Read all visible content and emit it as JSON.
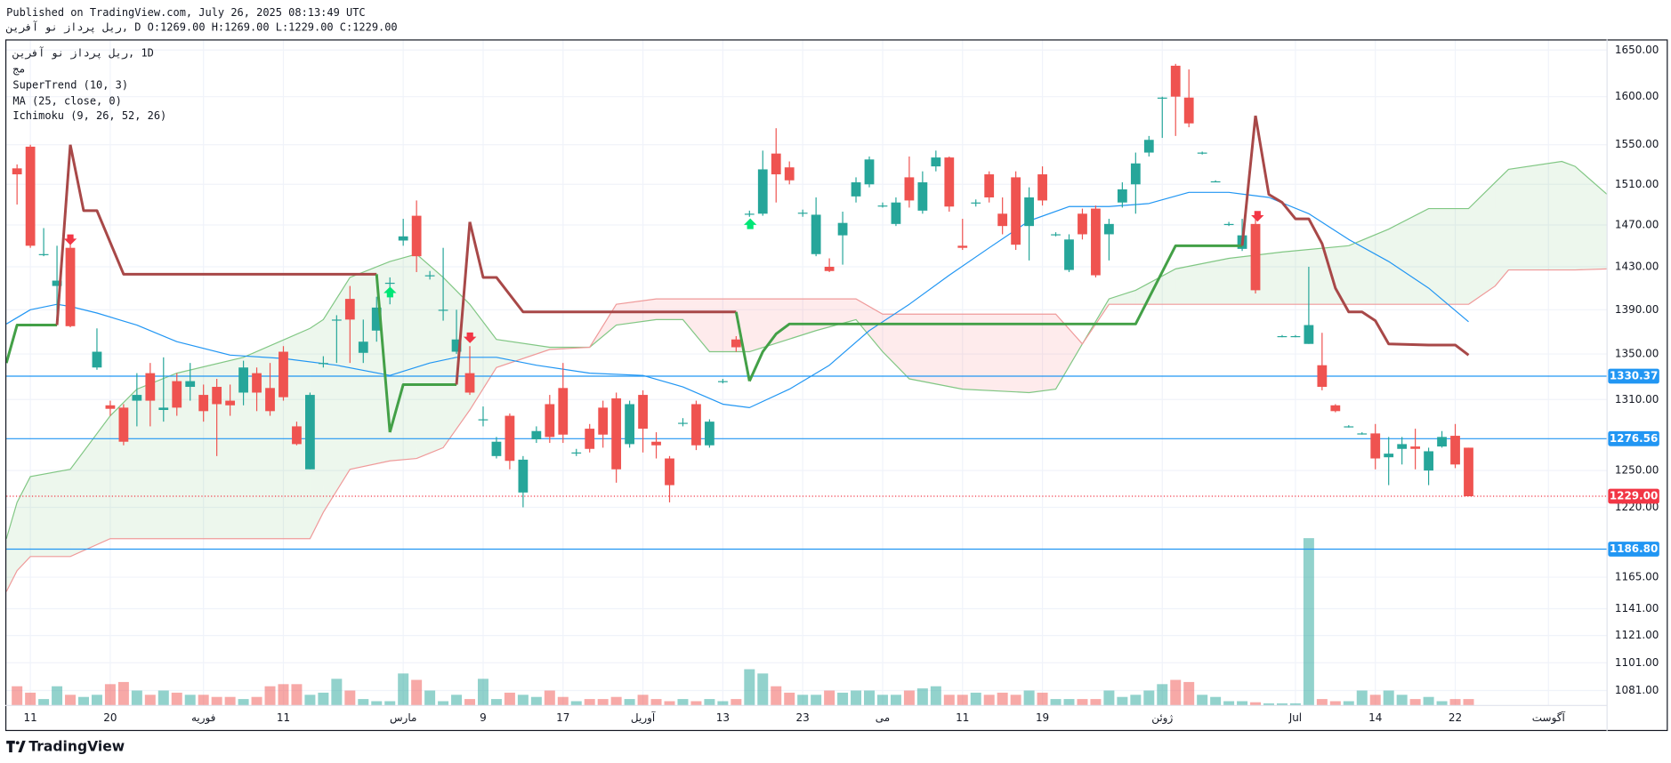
{
  "header": {
    "published": "Published on TradingView.com, July 26, 2025 08:13:49 UTC",
    "symbol": "ریل پرداز نو آفرین",
    "quote": ", D O:1269.00 H:1269.00 L:1229.00 C:1229.00"
  },
  "legend": {
    "symbol": "ریل پرداز نو آفرین",
    "interval": ", 1D",
    "exchange": "مج",
    "indicators": [
      "SuperTrend (10, 3)",
      "MA (25, close, 0)",
      "Ichimoku (9, 26, 52, 26)"
    ]
  },
  "footer": {
    "brand": "TradingView"
  },
  "chart_data": {
    "type": "candlestick",
    "log": true,
    "grid": true,
    "up_color": "#26a69a",
    "down_color": "#ef5350",
    "volume_up_color": "rgba(38,166,154,0.5)",
    "volume_down_color": "rgba(239,83,80,0.5)",
    "xlim": [
      -0.8,
      119.4
    ],
    "xticks": [
      {
        "value": 1,
        "label": "11"
      },
      {
        "value": 7,
        "label": "20"
      },
      {
        "value": 14,
        "label": "فوریه"
      },
      {
        "value": 20,
        "label": "11"
      },
      {
        "value": 29,
        "label": "مارس"
      },
      {
        "value": 35,
        "label": "9"
      },
      {
        "value": 41,
        "label": "17"
      },
      {
        "value": 47,
        "label": "آوریل"
      },
      {
        "value": 53,
        "label": "13"
      },
      {
        "value": 59,
        "label": "23"
      },
      {
        "value": 65,
        "label": "می"
      },
      {
        "value": 71,
        "label": "11"
      },
      {
        "value": 77,
        "label": "19"
      },
      {
        "value": 86,
        "label": "ژوئن"
      },
      {
        "value": 96,
        "label": "Jul"
      },
      {
        "value": 102,
        "label": "14"
      },
      {
        "value": 108,
        "label": "22"
      },
      {
        "value": 115,
        "label": "آگوست"
      }
    ],
    "ylim": [
      1070.4,
      1661.6
    ],
    "yticks": [
      {
        "value": 1650,
        "label": "1650.00"
      },
      {
        "value": 1600,
        "label": "1600.00"
      },
      {
        "value": 1550,
        "label": "1550.00"
      },
      {
        "value": 1510,
        "label": "1510.00"
      },
      {
        "value": 1470,
        "label": "1470.00"
      },
      {
        "value": 1430,
        "label": "1430.00"
      },
      {
        "value": 1390,
        "label": "1390.00"
      },
      {
        "value": 1350,
        "label": "1350.00"
      },
      {
        "value": 1310,
        "label": "1310.00"
      },
      {
        "value": 1250,
        "label": "1250.00"
      },
      {
        "value": 1220,
        "label": "1220.00"
      },
      {
        "value": 1165,
        "label": "1165.00"
      },
      {
        "value": 1141,
        "label": "1141.00"
      },
      {
        "value": 1121,
        "label": "1121.00"
      },
      {
        "value": 1101,
        "label": "1101.00"
      },
      {
        "value": 1081,
        "label": "1081.00"
      }
    ],
    "candles": [
      [
        1526,
        1530,
        1490,
        1520
      ],
      [
        1548,
        1550,
        1448,
        1450
      ],
      [
        1442,
        1467,
        1440,
        1442
      ],
      [
        1412,
        1450,
        1380,
        1417
      ],
      [
        1448,
        1456,
        1374,
        1375
      ],
      null,
      [
        1338,
        1373,
        1336,
        1352
      ],
      [
        1305,
        1309,
        1296,
        1302
      ],
      [
        1303,
        1306,
        1271,
        1274
      ],
      [
        1309,
        1333,
        1287,
        1314
      ],
      [
        1333,
        1342,
        1287,
        1309
      ],
      [
        1301,
        1347,
        1291,
        1303
      ],
      [
        1326,
        1333,
        1296,
        1303
      ],
      [
        1321,
        1342,
        1309,
        1326
      ],
      [
        1314,
        1323,
        1291,
        1300
      ],
      [
        1321,
        1328,
        1262,
        1306
      ],
      [
        1309,
        1323,
        1296,
        1305
      ],
      [
        1316,
        1344,
        1305,
        1338
      ],
      [
        1333,
        1338,
        1300,
        1316
      ],
      [
        1320,
        1342,
        1296,
        1300
      ],
      [
        1352,
        1357,
        1309,
        1312
      ],
      [
        1287,
        1291,
        1271,
        1272
      ],
      [
        1251,
        1316,
        1251,
        1314
      ],
      [
        1342,
        1348,
        1338,
        1342
      ],
      [
        1381,
        1385,
        1342,
        1381
      ],
      [
        1400,
        1412,
        1342,
        1381
      ],
      [
        1351,
        1381,
        1342,
        1361
      ],
      [
        1371,
        1402,
        1361,
        1392
      ],
      [
        1415,
        1420,
        1395,
        1415
      ],
      [
        1455,
        1476,
        1450,
        1459
      ],
      [
        1479,
        1494,
        1425,
        1440
      ],
      [
        1422,
        1426,
        1418,
        1422
      ],
      [
        1390,
        1448,
        1380,
        1390
      ],
      [
        1352,
        1390,
        1350,
        1363
      ],
      [
        1333,
        1357,
        1314,
        1316
      ],
      [
        1293,
        1304,
        1287,
        1293
      ],
      [
        1262,
        1278,
        1260,
        1274
      ],
      [
        1296,
        1298,
        1251,
        1258
      ],
      [
        1232,
        1262,
        1220,
        1259
      ],
      [
        1276,
        1287,
        1273,
        1283
      ],
      [
        1306,
        1314,
        1273,
        1278
      ],
      [
        1320,
        1342,
        1273,
        1280
      ],
      [
        1265,
        1268,
        1262,
        1265
      ],
      [
        1285,
        1289,
        1265,
        1268
      ],
      [
        1303,
        1309,
        1269,
        1280
      ],
      [
        1311,
        1316,
        1240,
        1251
      ],
      [
        1272,
        1309,
        1269,
        1306
      ],
      [
        1314,
        1318,
        1265,
        1285
      ],
      [
        1274,
        1282,
        1260,
        1271
      ],
      [
        1260,
        1262,
        1224,
        1238
      ],
      [
        1290,
        1294,
        1287,
        1290
      ],
      [
        1306,
        1309,
        1267,
        1271
      ],
      [
        1271,
        1293,
        1269,
        1291
      ],
      [
        1326,
        1328,
        1324,
        1326
      ],
      [
        1363,
        1366,
        1352,
        1356
      ],
      [
        1481,
        1484,
        1478,
        1481
      ],
      [
        1481,
        1544,
        1479,
        1525
      ],
      [
        1541,
        1567,
        1492,
        1520
      ],
      [
        1527,
        1533,
        1510,
        1514
      ],
      [
        1482,
        1485,
        1478,
        1482
      ],
      [
        1442,
        1497,
        1440,
        1480
      ],
      [
        1430,
        1438,
        1425,
        1426
      ],
      [
        1460,
        1483,
        1432,
        1472
      ],
      [
        1498,
        1517,
        1492,
        1512
      ],
      [
        1510,
        1538,
        1507,
        1535
      ],
      [
        1489,
        1492,
        1487,
        1489
      ],
      [
        1471,
        1497,
        1469,
        1492
      ],
      [
        1517,
        1538,
        1487,
        1494
      ],
      [
        1484,
        1523,
        1481,
        1512
      ],
      [
        1528,
        1544,
        1523,
        1537
      ],
      [
        1537,
        1538,
        1483,
        1488
      ],
      [
        1450,
        1476,
        1446,
        1448
      ],
      [
        1492,
        1495,
        1488,
        1492
      ],
      [
        1520,
        1523,
        1492,
        1497
      ],
      [
        1481,
        1497,
        1461,
        1469
      ],
      [
        1517,
        1523,
        1446,
        1451
      ],
      [
        1469,
        1507,
        1436,
        1497
      ],
      [
        1520,
        1528,
        1489,
        1494
      ],
      [
        1461,
        1463,
        1459,
        1461
      ],
      [
        1427,
        1461,
        1425,
        1456
      ],
      [
        1481,
        1486,
        1456,
        1461
      ],
      [
        1486,
        1489,
        1420,
        1422
      ],
      [
        1461,
        1476,
        1436,
        1471
      ],
      [
        1492,
        1512,
        1487,
        1505
      ],
      [
        1510,
        1542,
        1481,
        1531
      ],
      [
        1542,
        1559,
        1538,
        1555
      ],
      [
        1599,
        1600,
        1557,
        1599
      ],
      [
        1633,
        1635,
        1559,
        1600
      ],
      [
        1599,
        1629,
        1568,
        1572
      ],
      [
        1542,
        1543,
        1540,
        1542
      ],
      [
        1513,
        1514,
        1512,
        1513
      ],
      [
        1471,
        1473,
        1469,
        1471
      ],
      [
        1447,
        1476,
        1445,
        1460
      ],
      [
        1471,
        1476,
        1405,
        1408
      ],
      null,
      [
        1366,
        1367,
        1365,
        1366
      ],
      [
        1366,
        1367,
        1365,
        1366
      ],
      [
        1359,
        1430,
        1359,
        1376
      ],
      [
        1340,
        1369,
        1318,
        1321
      ],
      [
        1305,
        1306,
        1299,
        1300
      ],
      [
        1287,
        1288,
        1286,
        1287
      ],
      [
        1281,
        1282,
        1280,
        1281
      ],
      [
        1281,
        1289,
        1251,
        1260
      ],
      [
        1261,
        1278,
        1238,
        1264
      ],
      [
        1268,
        1278,
        1255,
        1272
      ],
      [
        1270,
        1285,
        1251,
        1268
      ],
      [
        1250,
        1269,
        1238,
        1266
      ],
      [
        1270,
        1283,
        1269,
        1278
      ],
      [
        1279,
        1289,
        1252,
        1255
      ],
      [
        1269,
        1269,
        1229,
        1229
      ]
    ],
    "volume": [
      18,
      12,
      6,
      18,
      10,
      8,
      10,
      20,
      22,
      14,
      10,
      14,
      12,
      10,
      10,
      8,
      8,
      6,
      8,
      18,
      20,
      20,
      10,
      12,
      25,
      14,
      6,
      4,
      4,
      30,
      24,
      14,
      4,
      10,
      6,
      25,
      6,
      12,
      10,
      8,
      14,
      8,
      4,
      6,
      6,
      8,
      6,
      10,
      6,
      4,
      6,
      4,
      6,
      4,
      6,
      34,
      30,
      18,
      12,
      10,
      10,
      14,
      12,
      14,
      14,
      10,
      10,
      14,
      16,
      18,
      10,
      10,
      12,
      10,
      12,
      10,
      14,
      12,
      6,
      6,
      6,
      6,
      14,
      8,
      10,
      14,
      20,
      24,
      22,
      10,
      8,
      4,
      4,
      3,
      2,
      2,
      2,
      157,
      6,
      4,
      4,
      14,
      10,
      14,
      10,
      6,
      8,
      4,
      6,
      6
    ],
    "ma": {
      "color": "#2196f3",
      "x": [
        -0.8,
        1,
        3,
        4,
        6,
        9,
        12,
        16,
        20,
        24,
        28,
        31,
        33,
        36,
        39,
        43,
        47,
        50,
        53,
        55,
        58,
        61,
        64,
        67,
        70,
        73,
        76,
        79,
        82,
        85,
        88,
        91,
        94,
        97,
        100,
        103,
        106,
        109
      ],
      "values": [
        1377,
        1390,
        1395,
        1393,
        1387,
        1376,
        1361,
        1349,
        1346,
        1340,
        1331,
        1342,
        1347,
        1347,
        1340,
        1333,
        1331,
        1321,
        1306,
        1303,
        1319,
        1340,
        1371,
        1395,
        1422,
        1448,
        1474,
        1488,
        1488,
        1491,
        1502,
        1502,
        1497,
        1481,
        1456,
        1435,
        1410,
        1379
      ]
    },
    "supertrend": [
      {
        "color": "#43a047",
        "x": [
          -0.8,
          0,
          3
        ],
        "values": [
          1342,
          1376,
          1376
        ]
      },
      {
        "color": "#a84848",
        "x": [
          4,
          5,
          6,
          8,
          27
        ],
        "values": [
          1550,
          1484,
          1484,
          1423,
          1423
        ]
      },
      {
        "color": "#43a047",
        "x": [
          28,
          29,
          33
        ],
        "values": [
          1282,
          1323,
          1323
        ]
      },
      {
        "color": "#a84848",
        "x": [
          34,
          35,
          36,
          38,
          54
        ],
        "values": [
          1473,
          1420,
          1420,
          1388,
          1388
        ]
      },
      {
        "color": "#43a047",
        "x": [
          55,
          56,
          57,
          58,
          84,
          87,
          92
        ],
        "values": [
          1326,
          1352,
          1368,
          1377,
          1377,
          1450,
          1450
        ]
      },
      {
        "color": "#a84848",
        "x": [
          93,
          94,
          95,
          96,
          97,
          98,
          99,
          100,
          101,
          102,
          103,
          106,
          108,
          109
        ],
        "values": [
          1580,
          1500,
          1492,
          1476,
          1476,
          1452,
          1410,
          1388,
          1388,
          1380,
          1359,
          1358,
          1358,
          1349
        ]
      }
    ],
    "ichimoku": {
      "span_a_color": "#81c784",
      "span_b_color": "#ef9a9a",
      "up_fill": "rgba(76,175,80,0.1)",
      "down_fill": "rgba(242,54,69,0.1)",
      "x": [
        -0.8,
        0,
        1,
        4,
        7,
        9,
        12,
        17,
        22,
        23,
        25,
        28,
        30,
        32,
        34,
        36,
        40,
        43,
        45,
        48,
        50,
        52,
        55,
        60,
        63,
        65,
        67,
        71,
        76,
        78,
        80,
        82,
        84,
        87,
        91,
        95,
        100,
        103,
        106,
        109,
        111,
        112,
        116,
        117,
        119.4
      ],
      "span_a": [
        1195,
        1224,
        1245,
        1251,
        1296,
        1319,
        1333,
        1347,
        1373,
        1381,
        1420,
        1435,
        1442,
        1420,
        1395,
        1363,
        1356,
        1356,
        1376,
        1381,
        1381,
        1352,
        1352,
        1371,
        1381,
        1352,
        1328,
        1319,
        1316,
        1319,
        1359,
        1400,
        1408,
        1428,
        1438,
        1444,
        1450,
        1466,
        1486,
        1486,
        1512,
        1525,
        1533,
        1528,
        1500
      ],
      "span_b": [
        1154,
        1170,
        1181,
        1181,
        1195,
        1195,
        1195,
        1195,
        1195,
        1216,
        1251,
        1258,
        1260,
        1269,
        1301,
        1338,
        1354,
        1356,
        1395,
        1400,
        1400,
        1400,
        1400,
        1400,
        1400,
        1386,
        1386,
        1386,
        1386,
        1386,
        1359,
        1395,
        1395,
        1395,
        1395,
        1395,
        1395,
        1395,
        1395,
        1395,
        1412,
        1427,
        1427,
        1427,
        1428
      ]
    },
    "price_lines": [
      {
        "value": 1330.37,
        "color": "#2196f3"
      },
      {
        "value": 1276.56,
        "color": "#2196f3"
      },
      {
        "value": 1186.8,
        "label": "1186.80",
        "color": "#2196f3"
      }
    ],
    "current_price": {
      "value": 1229,
      "label": "1229.00",
      "color": "#f23645"
    }
  }
}
